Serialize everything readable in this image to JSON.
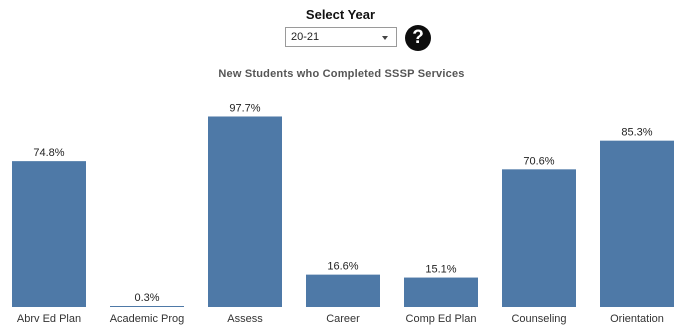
{
  "filter": {
    "label": "Select Year",
    "selected_value": "20-21"
  },
  "help": {
    "glyph": "?"
  },
  "chart_data": {
    "type": "bar",
    "title": "New Students who Completed SSSP Services",
    "categories": [
      "Abrv Ed Plan",
      "Academic Prog",
      "Assess",
      "Career",
      "Comp Ed Plan",
      "Counseling",
      "Orientation"
    ],
    "values": [
      74.8,
      0.3,
      97.7,
      16.6,
      15.1,
      70.6,
      85.3
    ],
    "value_labels": [
      "74.8%",
      "0.3%",
      "97.7%",
      "16.6%",
      "15.1%",
      "70.6%",
      "85.3%"
    ],
    "ylim": [
      0,
      100
    ],
    "bar_color": "#4e79a7",
    "grid": false
  }
}
